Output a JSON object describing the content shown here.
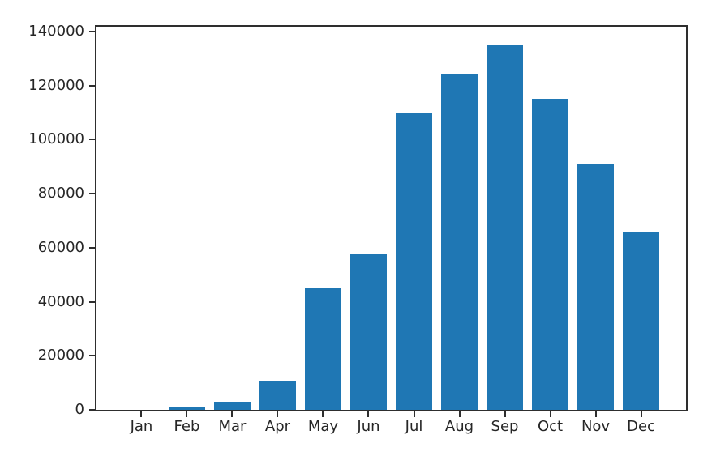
{
  "chart_data": {
    "type": "bar",
    "title": "",
    "xlabel": "",
    "ylabel": "",
    "categories": [
      "Jan",
      "Feb",
      "Mar",
      "Apr",
      "May",
      "Jun",
      "Jul",
      "Aug",
      "Sep",
      "Oct",
      "Nov",
      "Dec"
    ],
    "values": [
      0,
      1000,
      3000,
      10500,
      45000,
      57500,
      110000,
      124500,
      135000,
      115000,
      91000,
      66000
    ],
    "ylim": [
      0,
      141750
    ],
    "yticks": [
      0,
      20000,
      40000,
      60000,
      80000,
      100000,
      120000,
      140000
    ],
    "ytick_labels": [
      "0",
      "20000",
      "40000",
      "60000",
      "80000",
      "100000",
      "120000",
      "140000"
    ],
    "bar_width_fraction": 0.8,
    "grid": false,
    "legend": null,
    "colors": {
      "bar_fill": "#1f77b4",
      "axis_line": "#2e2e2e",
      "tick_label": "#262626",
      "background": "#ffffff"
    }
  }
}
